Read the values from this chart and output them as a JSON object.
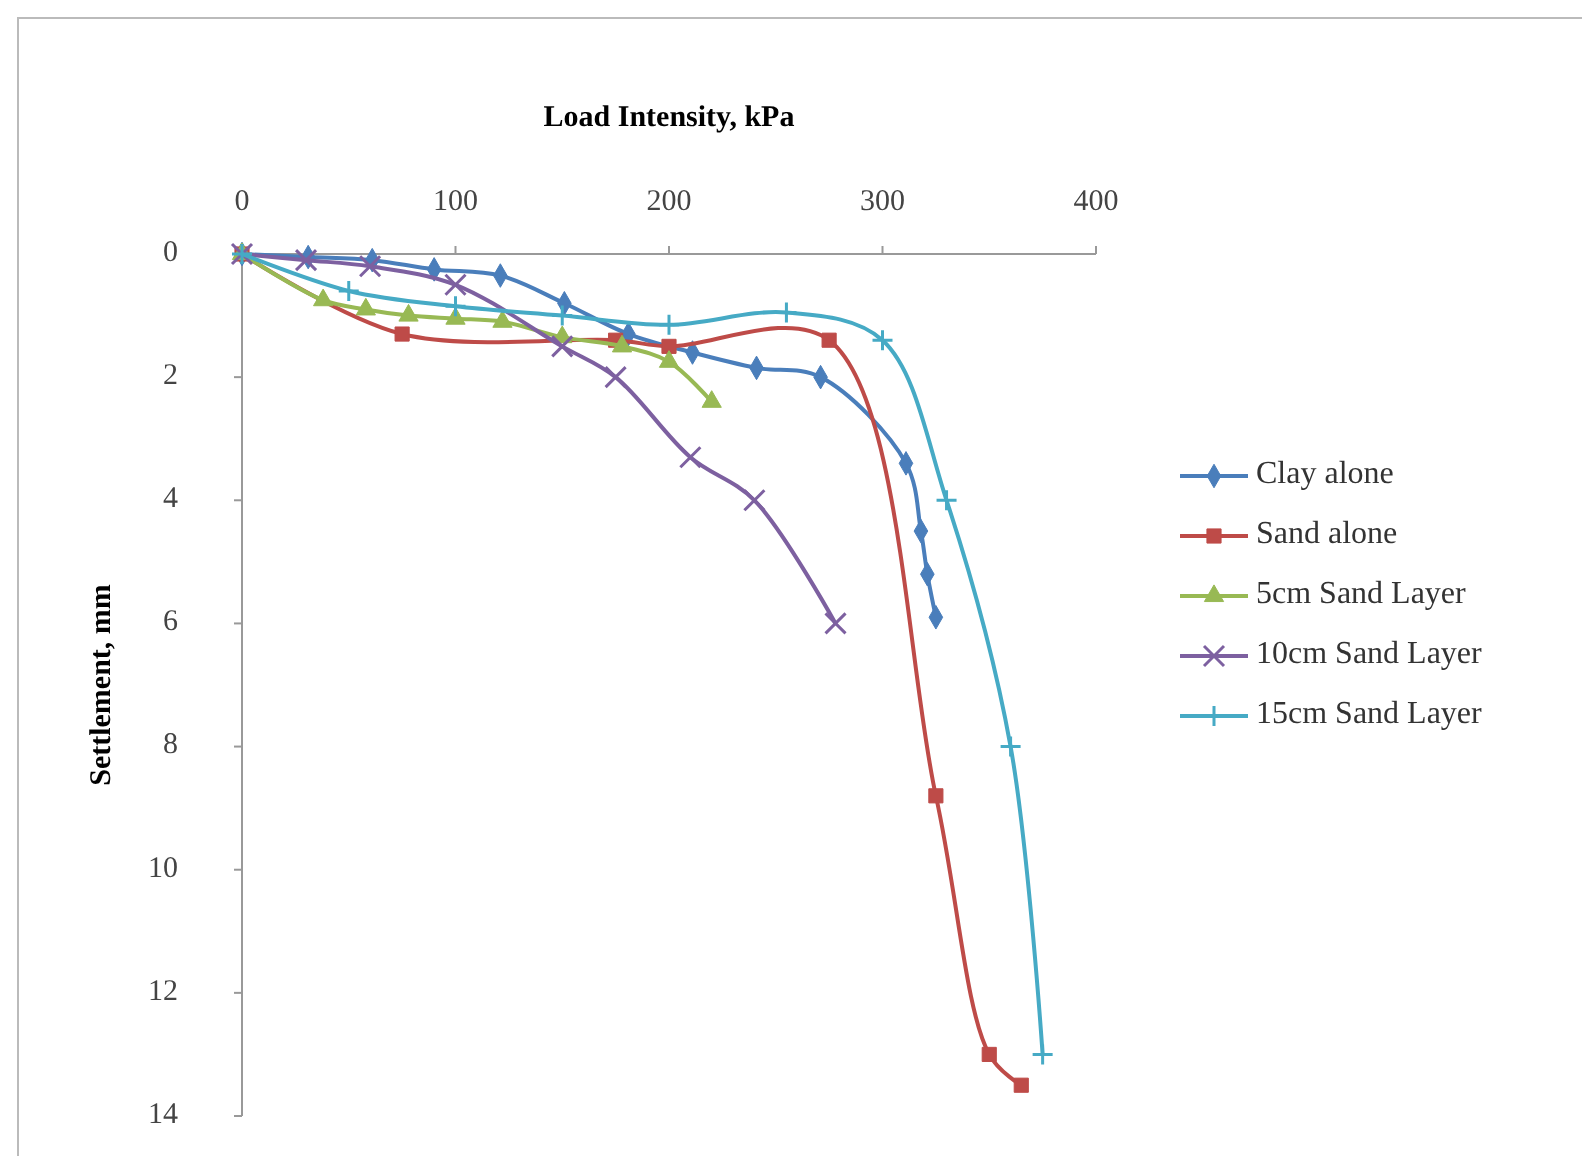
{
  "chart_data": {
    "type": "line",
    "xlabel": "Load Intensity, kPa",
    "ylabel": "Settlement, mm",
    "xlim": [
      0,
      400
    ],
    "xticks": [
      0,
      100,
      200,
      300,
      400
    ],
    "ylim": [
      14,
      0
    ],
    "yticks": [
      0,
      2,
      4,
      6,
      8,
      10,
      12,
      14
    ],
    "grid": false,
    "legend": "right",
    "series": [
      {
        "name": "Clay alone",
        "color": "#4a7ebb",
        "marker": "diamond",
        "x": [
          0,
          31,
          61,
          90,
          121,
          151,
          181,
          211,
          241,
          271,
          311,
          318,
          321,
          325
        ],
        "values": [
          0,
          0.05,
          0.1,
          0.25,
          0.35,
          0.8,
          1.3,
          1.6,
          1.85,
          2.0,
          3.4,
          4.5,
          5.2,
          5.9
        ]
      },
      {
        "name": "Sand alone",
        "color": "#be4b48",
        "marker": "square",
        "x": [
          0,
          75,
          175,
          200,
          275,
          325,
          350,
          365
        ],
        "values": [
          0,
          1.3,
          1.4,
          1.5,
          1.4,
          8.8,
          13.0,
          13.5
        ]
      },
      {
        "name": "5cm Sand Layer",
        "color": "#98b954",
        "marker": "triangle",
        "x": [
          0,
          38,
          58,
          78,
          100,
          122,
          150,
          178,
          200,
          220
        ],
        "values": [
          0,
          0.75,
          0.9,
          1.0,
          1.05,
          1.1,
          1.35,
          1.5,
          1.75,
          2.4
        ]
      },
      {
        "name": "10cm Sand Layer",
        "color": "#7d60a0",
        "marker": "cross",
        "x": [
          0,
          30,
          60,
          100,
          150,
          175,
          210,
          240,
          278
        ],
        "values": [
          0,
          0.1,
          0.2,
          0.5,
          1.5,
          2.0,
          3.3,
          4.0,
          6.0
        ]
      },
      {
        "name": "15cm Sand Layer",
        "color": "#46aac5",
        "marker": "cross",
        "x": [
          0,
          50,
          100,
          150,
          200,
          255,
          300,
          330,
          360,
          375
        ],
        "values": [
          0,
          0.6,
          0.85,
          1.0,
          1.15,
          0.95,
          1.4,
          4.0,
          8.0,
          13.0
        ]
      }
    ]
  }
}
